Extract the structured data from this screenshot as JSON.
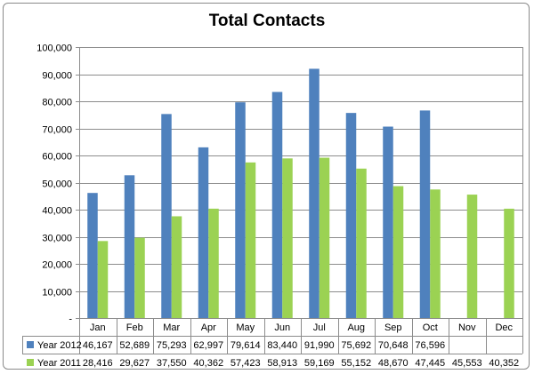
{
  "chart_data": {
    "type": "bar",
    "title": "Total Contacts",
    "xlabel": "",
    "ylabel": "",
    "ylim": [
      0,
      100000
    ],
    "yticks": [
      0,
      10000,
      20000,
      30000,
      40000,
      50000,
      60000,
      70000,
      80000,
      90000,
      100000
    ],
    "ytick_labels": [
      "-",
      "10,000",
      "20,000",
      "30,000",
      "40,000",
      "50,000",
      "60,000",
      "70,000",
      "80,000",
      "90,000",
      "100,000"
    ],
    "grid": true,
    "legend": "data-table",
    "categories": [
      "Jan",
      "Feb",
      "Mar",
      "Apr",
      "May",
      "Jun",
      "Jul",
      "Aug",
      "Sep",
      "Oct",
      "Nov",
      "Dec"
    ],
    "series": [
      {
        "name": "Year 2012",
        "color": "#4f81bd",
        "values": [
          46167,
          52689,
          75293,
          62997,
          79614,
          83440,
          91990,
          75692,
          70648,
          76596,
          null,
          null
        ],
        "labels": [
          "46,167",
          "52,689",
          "75,293",
          "62,997",
          "79,614",
          "83,440",
          "91,990",
          "75,692",
          "70,648",
          "76,596",
          "",
          ""
        ]
      },
      {
        "name": "Year 2011",
        "color": "#9bd253",
        "values": [
          28416,
          29627,
          37550,
          40362,
          57423,
          58913,
          59169,
          55152,
          48670,
          47445,
          45553,
          40352
        ],
        "labels": [
          "28,416",
          "29,627",
          "37,550",
          "40,362",
          "57,423",
          "58,913",
          "59,169",
          "55,152",
          "48,670",
          "47,445",
          "45,553",
          "40,352"
        ]
      }
    ]
  }
}
